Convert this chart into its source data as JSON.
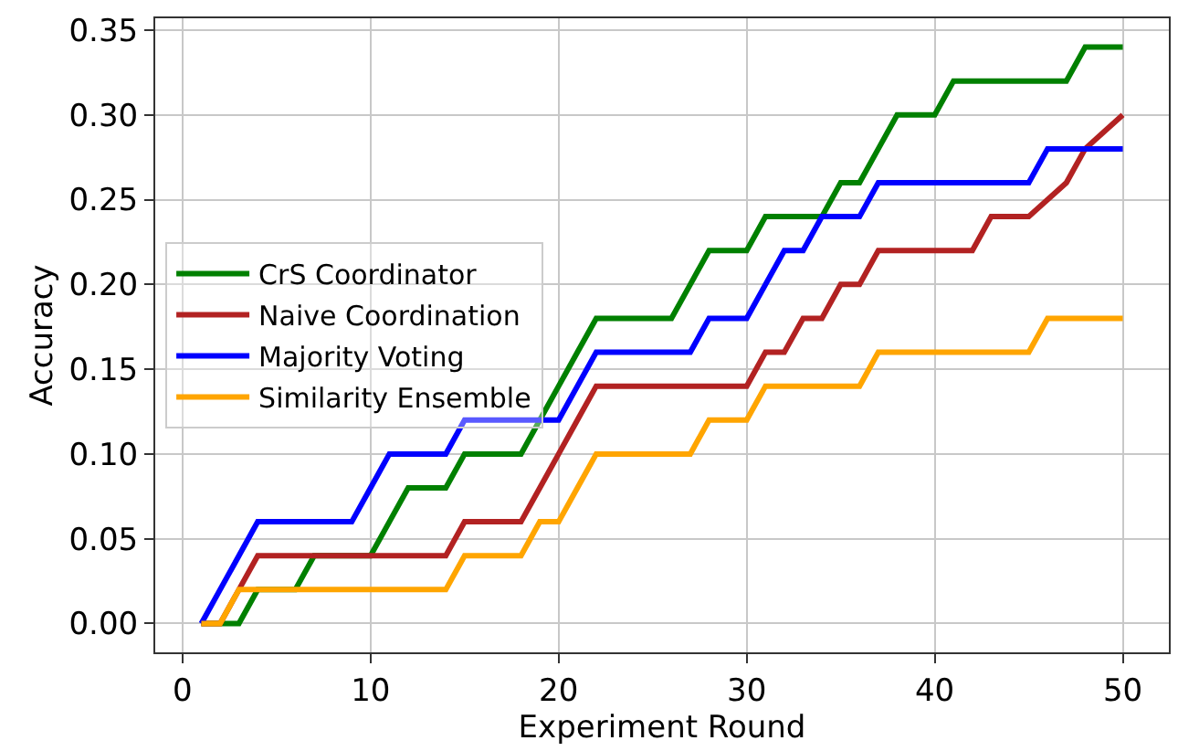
{
  "chart_data": {
    "type": "line",
    "xlabel": "Experiment Round",
    "ylabel": "Accuracy",
    "x": [
      1,
      2,
      3,
      4,
      5,
      6,
      7,
      8,
      9,
      10,
      11,
      12,
      13,
      14,
      15,
      16,
      17,
      18,
      19,
      20,
      21,
      22,
      23,
      24,
      25,
      26,
      27,
      28,
      29,
      30,
      31,
      32,
      33,
      34,
      35,
      36,
      37,
      38,
      39,
      40,
      41,
      42,
      43,
      44,
      45,
      46,
      47,
      48,
      49,
      50
    ],
    "series": [
      {
        "name": "CrS Coordinator",
        "color": "#008000",
        "values": [
          0,
          0,
          0,
          0.02,
          0.02,
          0.02,
          0.04,
          0.04,
          0.04,
          0.04,
          0.06,
          0.08,
          0.08,
          0.08,
          0.1,
          0.1,
          0.1,
          0.1,
          0.12,
          0.14,
          0.16,
          0.18,
          0.18,
          0.18,
          0.18,
          0.18,
          0.2,
          0.22,
          0.22,
          0.22,
          0.24,
          0.24,
          0.24,
          0.24,
          0.26,
          0.26,
          0.28,
          0.3,
          0.3,
          0.3,
          0.32,
          0.32,
          0.32,
          0.32,
          0.32,
          0.32,
          0.32,
          0.34,
          0.34,
          0.34
        ]
      },
      {
        "name": "Naive Coordination",
        "color": "#b22222",
        "values": [
          0,
          0,
          0.02,
          0.04,
          0.04,
          0.04,
          0.04,
          0.04,
          0.04,
          0.04,
          0.04,
          0.04,
          0.04,
          0.04,
          0.06,
          0.06,
          0.06,
          0.06,
          0.08,
          0.1,
          0.12,
          0.14,
          0.14,
          0.14,
          0.14,
          0.14,
          0.14,
          0.14,
          0.14,
          0.14,
          0.16,
          0.16,
          0.18,
          0.18,
          0.2,
          0.2,
          0.22,
          0.22,
          0.22,
          0.22,
          0.22,
          0.22,
          0.24,
          0.24,
          0.24,
          0.25,
          0.26,
          0.28,
          0.29,
          0.3
        ]
      },
      {
        "name": "Majority Voting",
        "color": "#0000ff",
        "values": [
          0,
          0.02,
          0.04,
          0.06,
          0.06,
          0.06,
          0.06,
          0.06,
          0.06,
          0.08,
          0.1,
          0.1,
          0.1,
          0.1,
          0.12,
          0.12,
          0.12,
          0.12,
          0.12,
          0.12,
          0.14,
          0.16,
          0.16,
          0.16,
          0.16,
          0.16,
          0.16,
          0.18,
          0.18,
          0.18,
          0.2,
          0.22,
          0.22,
          0.24,
          0.24,
          0.24,
          0.26,
          0.26,
          0.26,
          0.26,
          0.26,
          0.26,
          0.26,
          0.26,
          0.26,
          0.28,
          0.28,
          0.28,
          0.28,
          0.28
        ]
      },
      {
        "name": "Similarity Ensemble",
        "color": "#ffa500",
        "values": [
          0,
          0,
          0.02,
          0.02,
          0.02,
          0.02,
          0.02,
          0.02,
          0.02,
          0.02,
          0.02,
          0.02,
          0.02,
          0.02,
          0.04,
          0.04,
          0.04,
          0.04,
          0.06,
          0.06,
          0.08,
          0.1,
          0.1,
          0.1,
          0.1,
          0.1,
          0.1,
          0.12,
          0.12,
          0.12,
          0.14,
          0.14,
          0.14,
          0.14,
          0.14,
          0.14,
          0.16,
          0.16,
          0.16,
          0.16,
          0.16,
          0.16,
          0.16,
          0.16,
          0.16,
          0.18,
          0.18,
          0.18,
          0.18,
          0.18
        ]
      }
    ],
    "xlim": [
      -1.45,
      52.45
    ],
    "xticks": [
      0,
      10,
      20,
      30,
      40,
      50
    ],
    "ylim": [
      -0.017,
      0.357
    ],
    "yticks": [
      {
        "value": 0,
        "label": "0.00"
      },
      {
        "value": 0.05,
        "label": "0.05"
      },
      {
        "value": 0.1,
        "label": "0.10"
      },
      {
        "value": 0.15,
        "label": "0.15"
      },
      {
        "value": 0.2,
        "label": "0.20"
      },
      {
        "value": 0.25,
        "label": "0.25"
      },
      {
        "value": 0.3,
        "label": "0.30"
      },
      {
        "value": 0.35,
        "label": "0.35"
      }
    ],
    "grid": true,
    "legend": "left",
    "marker": "none",
    "line_style": "solid"
  }
}
